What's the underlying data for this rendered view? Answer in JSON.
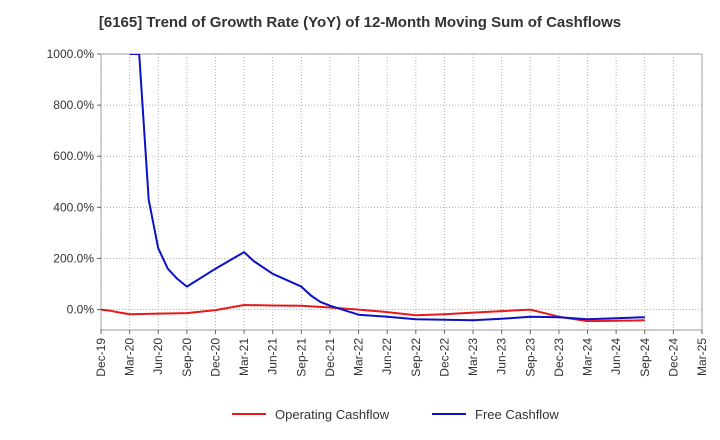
{
  "chart_data": {
    "type": "line",
    "title": "[6165]  Trend of Growth Rate (YoY) of 12-Month Moving Sum of Cashflows",
    "xlabel": "",
    "ylabel": "",
    "x_tick_labels": [
      "Dec-19",
      "Mar-20",
      "Jun-20",
      "Sep-20",
      "Dec-20",
      "Mar-21",
      "Jun-21",
      "Sep-21",
      "Dec-21",
      "Mar-22",
      "Jun-22",
      "Sep-22",
      "Dec-22",
      "Mar-23",
      "Jun-23",
      "Sep-23",
      "Dec-23",
      "Mar-24",
      "Jun-24",
      "Sep-24",
      "Dec-24",
      "Mar-25"
    ],
    "y_tick_labels": [
      "0.0%",
      "200.0%",
      "400.0%",
      "600.0%",
      "800.0%",
      "1000.0%"
    ],
    "y_ticks": [
      0,
      200,
      400,
      600,
      800,
      1000
    ],
    "ylim": [
      -80,
      1000
    ],
    "x_range": [
      "Dec-19",
      "Mar-25"
    ],
    "grid": "horizontal and vertical dotted",
    "legend_position": "bottom",
    "series": [
      {
        "name": "Operating Cashflow",
        "color": "#e8191d",
        "points": [
          [
            "Dec-19",
            0
          ],
          [
            "Jan-20",
            -5
          ],
          [
            "Feb-20",
            -12
          ],
          [
            "Mar-20",
            -18
          ],
          [
            "Jun-20",
            -16
          ],
          [
            "Sep-20",
            -14
          ],
          [
            "Dec-20",
            -2
          ],
          [
            "Mar-21",
            18
          ],
          [
            "Jun-21",
            16
          ],
          [
            "Sep-21",
            15
          ],
          [
            "Dec-21",
            8
          ],
          [
            "Mar-22",
            0
          ],
          [
            "Jun-22",
            -10
          ],
          [
            "Sep-22",
            -22
          ],
          [
            "Dec-22",
            -18
          ],
          [
            "Mar-23",
            -12
          ],
          [
            "Jun-23",
            -6
          ],
          [
            "Sep-23",
            0
          ],
          [
            "Dec-23",
            -28
          ],
          [
            "Mar-24",
            -45
          ],
          [
            "Jun-24",
            -44
          ],
          [
            "Sep-24",
            -42
          ]
        ]
      },
      {
        "name": "Free Cashflow",
        "color": "#0a12c8",
        "points": [
          [
            "Mar-20",
            1000
          ],
          [
            "Apr-20",
            1000
          ],
          [
            "May-20",
            430
          ],
          [
            "Jun-20",
            240
          ],
          [
            "Jul-20",
            160
          ],
          [
            "Aug-20",
            120
          ],
          [
            "Sep-20",
            90
          ],
          [
            "Dec-20",
            160
          ],
          [
            "Mar-21",
            225
          ],
          [
            "Apr-21",
            190
          ],
          [
            "Jun-21",
            140
          ],
          [
            "Sep-21",
            90
          ],
          [
            "Oct-21",
            55
          ],
          [
            "Nov-21",
            30
          ],
          [
            "Dec-21",
            15
          ],
          [
            "Mar-22",
            -20
          ],
          [
            "Jun-22",
            -28
          ],
          [
            "Sep-22",
            -38
          ],
          [
            "Dec-22",
            -40
          ],
          [
            "Mar-23",
            -42
          ],
          [
            "Jun-23",
            -36
          ],
          [
            "Sep-23",
            -28
          ],
          [
            "Dec-23",
            -30
          ],
          [
            "Mar-24",
            -38
          ],
          [
            "Jun-24",
            -34
          ],
          [
            "Sep-24",
            -30
          ]
        ]
      }
    ]
  }
}
